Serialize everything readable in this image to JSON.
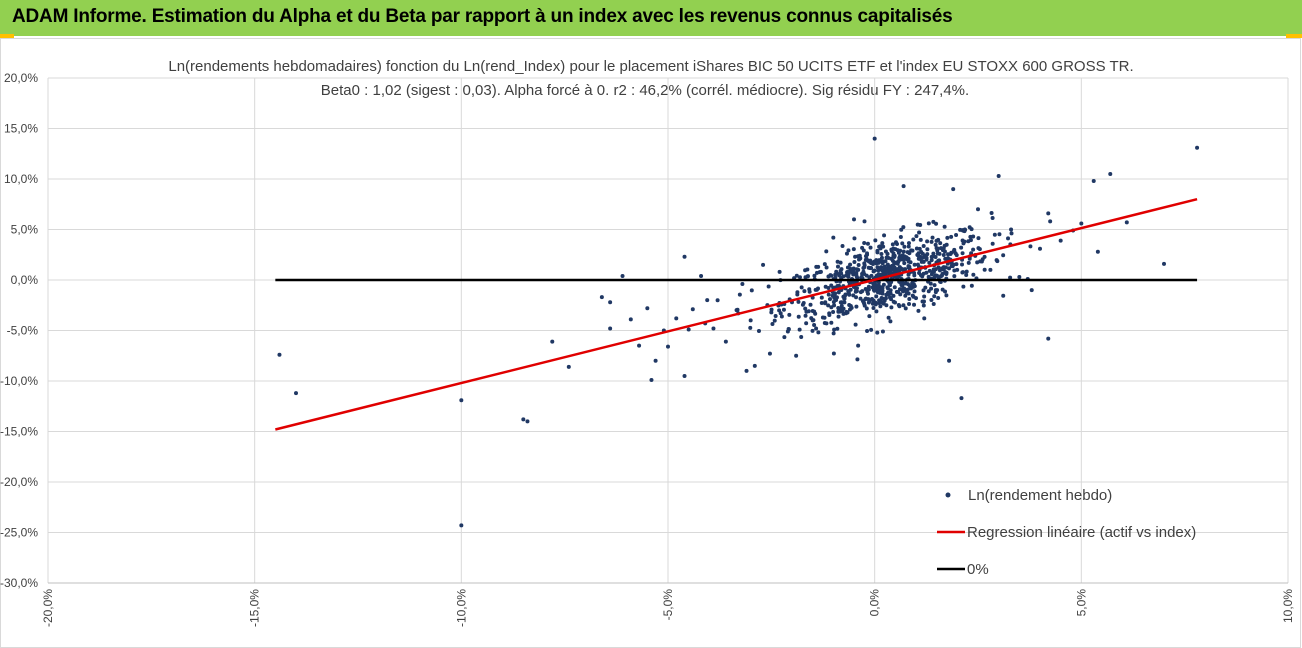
{
  "header": {
    "title": "ADAM Informe. Estimation du Alpha et du Beta par rapport à un index avec les revenus connus capitalisés"
  },
  "colors": {
    "banner": "#92d050",
    "accent": "#ffc000",
    "points": "#203864",
    "regression": "#e00000",
    "zero_line": "#000000"
  },
  "chart_data": {
    "type": "scatter",
    "title_line1": "Ln(rendements hebdomadaires) fonction du Ln(rend_Index) pour le placement iShares BIC 50 UCITS ETF  et l'index EU STOXX 600 GROSS TR.",
    "title_line2": "Beta0 : 1,02  (sigest : 0,03). Alpha forcé à 0. r2 : 46,2% (corrél. médiocre). Sig résidu FY : 247,4%.",
    "xlim": [
      -20,
      10
    ],
    "ylim": [
      -30,
      20
    ],
    "x_ticks": [
      -20,
      -15,
      -10,
      -5,
      0,
      5,
      10
    ],
    "y_ticks": [
      -30,
      -25,
      -20,
      -15,
      -10,
      -5,
      0,
      5,
      10,
      15,
      20
    ],
    "x_tick_labels": [
      "-20,0%",
      "-15,0%",
      "-10,0%",
      "-5,0%",
      "0,0%",
      "5,0%",
      "10,0%"
    ],
    "y_tick_labels": [
      "-30,0%",
      "-25,0%",
      "-20,0%",
      "-15,0%",
      "-10,0%",
      "-5,0%",
      "0,0%",
      "5,0%",
      "10,0%",
      "15,0%",
      "20,0%"
    ],
    "grid": "horizontal and vertical",
    "legend_position": "bottom-right",
    "series": [
      {
        "name": "Ln(rendement hebdo)",
        "kind": "scatter",
        "points": [
          [
            -14.4,
            -7.4
          ],
          [
            -14.0,
            -11.2
          ],
          [
            -10.0,
            -11.9
          ],
          [
            -10.0,
            -24.3
          ],
          [
            -8.5,
            -13.8
          ],
          [
            -8.4,
            -14.0
          ],
          [
            -7.8,
            -6.1
          ],
          [
            -7.4,
            -8.6
          ],
          [
            -6.6,
            -1.7
          ],
          [
            -6.4,
            -2.2
          ],
          [
            -6.4,
            -4.8
          ],
          [
            -6.1,
            0.4
          ],
          [
            -5.9,
            -3.9
          ],
          [
            -5.7,
            -6.5
          ],
          [
            -5.5,
            -2.8
          ],
          [
            -5.4,
            -9.9
          ],
          [
            -5.3,
            -8.0
          ],
          [
            -5.1,
            -5.0
          ],
          [
            -5.0,
            -6.6
          ],
          [
            -4.8,
            -3.8
          ],
          [
            -4.6,
            -9.5
          ],
          [
            -4.6,
            2.3
          ],
          [
            -4.5,
            -4.9
          ],
          [
            -4.4,
            -2.9
          ],
          [
            -4.2,
            0.4
          ],
          [
            -4.1,
            -4.3
          ],
          [
            -3.9,
            -4.8
          ],
          [
            -3.8,
            -2.0
          ],
          [
            -3.6,
            -6.1
          ],
          [
            -3.3,
            -3.3
          ],
          [
            -3.2,
            -0.4
          ],
          [
            -3.1,
            -9.0
          ],
          [
            -3.0,
            -4.0
          ],
          [
            -2.9,
            -8.5
          ],
          [
            -2.7,
            1.5
          ],
          [
            -2.5,
            -3.2
          ],
          [
            -2.3,
            0.8
          ],
          [
            -2.1,
            -5.1
          ],
          [
            -2.0,
            -2.2
          ],
          [
            -1.9,
            -7.5
          ],
          [
            -1.7,
            -1.1
          ],
          [
            -1.5,
            -4.0
          ],
          [
            -1.3,
            0.8
          ],
          [
            -1.2,
            -2.3
          ],
          [
            -1.1,
            -3.3
          ],
          [
            -1.0,
            4.2
          ],
          [
            -0.9,
            -0.6
          ],
          [
            -0.8,
            -2.2
          ],
          [
            -0.5,
            6.0
          ],
          [
            -0.4,
            -6.5
          ],
          [
            -0.3,
            -1.1
          ],
          [
            -0.1,
            3.2
          ],
          [
            0.0,
            14.0
          ],
          [
            0.2,
            -5.1
          ],
          [
            0.4,
            0.4
          ],
          [
            0.6,
            -2.6
          ],
          [
            0.7,
            9.3
          ],
          [
            1.0,
            -1.8
          ],
          [
            1.2,
            -3.8
          ],
          [
            1.4,
            4.2
          ],
          [
            1.6,
            -0.2
          ],
          [
            1.8,
            -8.0
          ],
          [
            1.9,
            9.0
          ],
          [
            2.1,
            -11.7
          ],
          [
            2.3,
            2.1
          ],
          [
            2.5,
            7.0
          ],
          [
            2.8,
            1.0
          ],
          [
            3.0,
            10.3
          ],
          [
            3.3,
            5.0
          ],
          [
            3.5,
            0.3
          ],
          [
            3.8,
            -1.0
          ],
          [
            4.0,
            3.1
          ],
          [
            4.2,
            -5.8
          ],
          [
            4.2,
            6.6
          ],
          [
            4.5,
            3.9
          ],
          [
            4.8,
            4.9
          ],
          [
            5.0,
            5.6
          ],
          [
            5.3,
            9.8
          ],
          [
            5.4,
            2.8
          ],
          [
            5.7,
            10.5
          ],
          [
            6.1,
            5.7
          ],
          [
            7.0,
            1.6
          ],
          [
            7.8,
            13.1
          ]
        ],
        "dense_cloud": {
          "x_mean": 0.3,
          "x_sd": 1.25,
          "beta": 1.02,
          "resid_sd": 1.85,
          "count": 760
        }
      },
      {
        "name": "Regression linéaire (actif vs index)",
        "kind": "line",
        "points": [
          [
            -14.5,
            -14.8
          ],
          [
            7.8,
            8.0
          ]
        ]
      },
      {
        "name": "0%",
        "kind": "line",
        "points": [
          [
            -14.5,
            0
          ],
          [
            7.8,
            0
          ]
        ]
      }
    ]
  }
}
